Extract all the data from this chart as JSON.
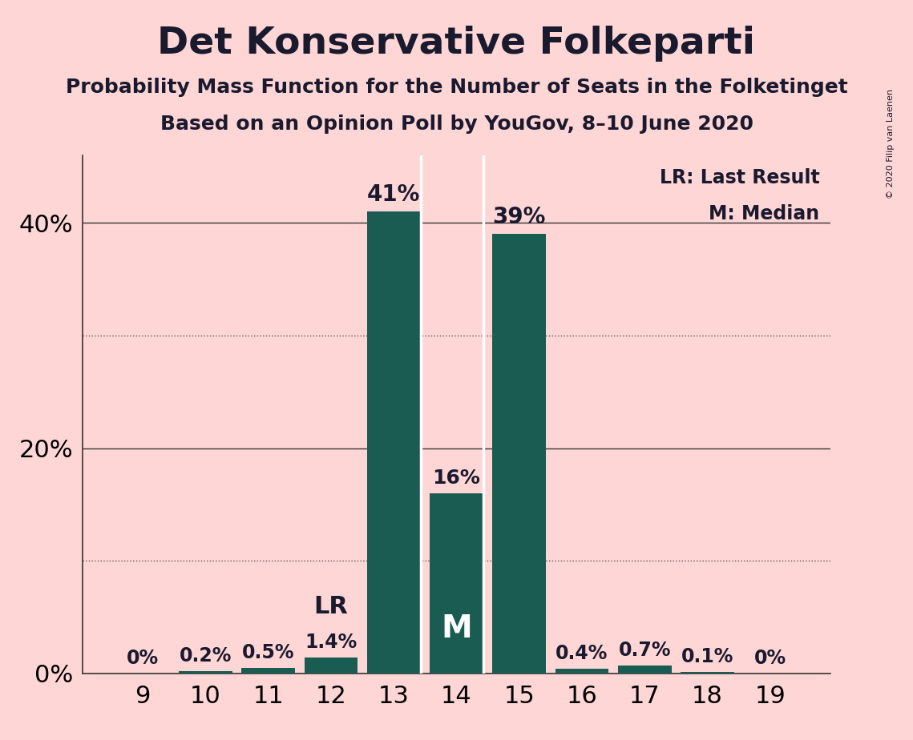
{
  "title": "Det Konservative Folkeparti",
  "subtitle1": "Probability Mass Function for the Number of Seats in the Folketinget",
  "subtitle2": "Based on an Opinion Poll by YouGov, 8–10 June 2020",
  "copyright": "© 2020 Filip van Laenen",
  "categories": [
    9,
    10,
    11,
    12,
    13,
    14,
    15,
    16,
    17,
    18,
    19
  ],
  "values": [
    0.0,
    0.2,
    0.5,
    1.4,
    41.0,
    16.0,
    39.0,
    0.4,
    0.7,
    0.1,
    0.0
  ],
  "bar_color": "#1a5c52",
  "background_color": "#ffd6d6",
  "label_color": "#1a1a2e",
  "yticks_solid": [
    20,
    40
  ],
  "yticks_dotted": [
    10,
    30
  ],
  "ylim": [
    0,
    46
  ],
  "lr_seat": 12,
  "median_seat": 14,
  "legend_lr": "LR: Last Result",
  "legend_m": "M: Median",
  "bar_labels": [
    "0%",
    "0.2%",
    "0.5%",
    "1.4%",
    "41%",
    "16%",
    "39%",
    "0.4%",
    "0.7%",
    "0.1%",
    "0%"
  ],
  "large_bar_indices": [
    4,
    5,
    6
  ],
  "white_dividers_at": [
    4,
    5
  ],
  "lr_idx": 3,
  "median_idx": 5
}
